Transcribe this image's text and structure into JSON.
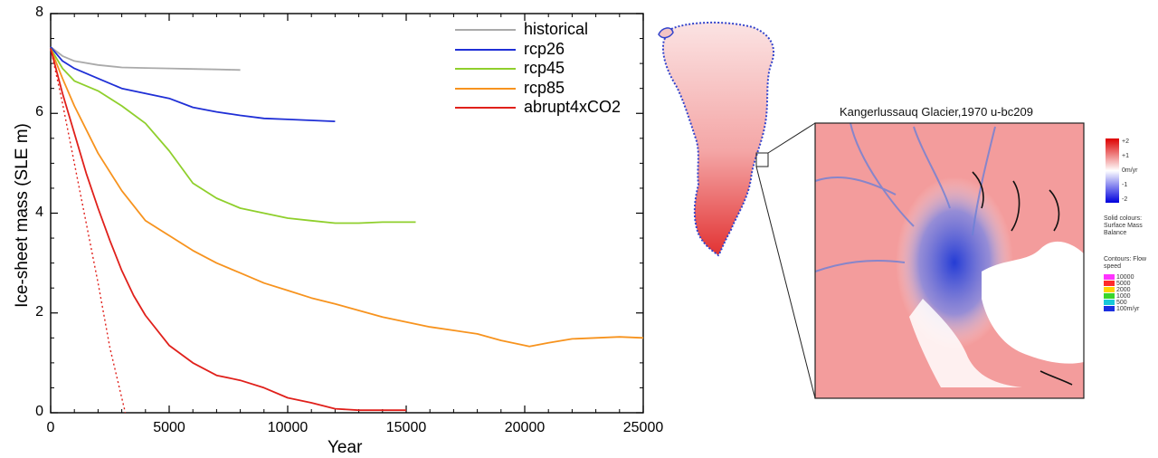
{
  "chart_data": {
    "type": "line",
    "xlabel": "Year",
    "ylabel": "Ice-sheet mass (SLE m)",
    "xlim": [
      0,
      25000
    ],
    "ylim": [
      0,
      8
    ],
    "xticks": [
      0,
      5000,
      10000,
      15000,
      20000,
      25000
    ],
    "yticks": [
      0,
      2,
      4,
      6,
      8
    ],
    "legend_position": "top-right",
    "series": [
      {
        "name": "historical",
        "color": "#aaaaaa",
        "x": [
          0,
          500,
          1000,
          2000,
          3000,
          4000,
          5000,
          6000,
          7000,
          8000
        ],
        "y": [
          7.33,
          7.15,
          7.05,
          6.97,
          6.92,
          6.91,
          6.9,
          6.89,
          6.88,
          6.87
        ]
      },
      {
        "name": "rcp26",
        "color": "#1f2fd6",
        "x": [
          0,
          500,
          1000,
          2000,
          3000,
          4000,
          5000,
          6000,
          7000,
          8000,
          9000,
          10000,
          11000,
          12000
        ],
        "y": [
          7.33,
          7.05,
          6.9,
          6.7,
          6.5,
          6.4,
          6.3,
          6.12,
          6.03,
          5.96,
          5.9,
          5.88,
          5.86,
          5.84
        ]
      },
      {
        "name": "rcp45",
        "color": "#8fcf2c",
        "x": [
          0,
          500,
          1000,
          2000,
          3000,
          4000,
          5000,
          6000,
          7000,
          8000,
          9000,
          10000,
          11000,
          12000,
          13000,
          14000,
          15400
        ],
        "y": [
          7.3,
          6.9,
          6.65,
          6.45,
          6.15,
          5.8,
          5.25,
          4.6,
          4.3,
          4.1,
          4.0,
          3.9,
          3.85,
          3.8,
          3.8,
          3.82,
          3.82
        ]
      },
      {
        "name": "rcp85",
        "color": "#f7931e",
        "x": [
          0,
          500,
          1000,
          2000,
          3000,
          4000,
          5000,
          6000,
          7000,
          8000,
          9000,
          10000,
          11000,
          12000,
          13000,
          14000,
          15000,
          16000,
          17000,
          18000,
          19000,
          20000,
          20200,
          21000,
          22000,
          23000,
          24000,
          25000
        ],
        "y": [
          7.3,
          6.7,
          6.15,
          5.2,
          4.45,
          3.85,
          3.55,
          3.25,
          3.0,
          2.8,
          2.6,
          2.45,
          2.3,
          2.18,
          2.05,
          1.92,
          1.82,
          1.72,
          1.65,
          1.58,
          1.45,
          1.35,
          1.33,
          1.4,
          1.48,
          1.5,
          1.52,
          1.5
        ]
      },
      {
        "name": "abrupt4xCO2",
        "color": "#e0201b",
        "x": [
          0,
          500,
          1000,
          1500,
          2000,
          2500,
          3000,
          3500,
          4000,
          5000,
          6000,
          7000,
          8000,
          9000,
          10000,
          11000,
          12000,
          13000,
          14000,
          15000
        ],
        "y": [
          7.3,
          6.4,
          5.6,
          4.8,
          4.1,
          3.45,
          2.85,
          2.35,
          1.95,
          1.35,
          1.0,
          0.75,
          0.65,
          0.5,
          0.3,
          0.2,
          0.08,
          0.05,
          0.05,
          0.05
        ]
      },
      {
        "name": "",
        "color": "#e0201b",
        "dashed": true,
        "legend": false,
        "x": [
          0,
          500,
          1000,
          1500,
          2000,
          2500,
          3150
        ],
        "y": [
          7.3,
          6.2,
          5.0,
          3.8,
          2.6,
          1.3,
          0.0
        ]
      }
    ]
  },
  "inset": {
    "title": "Kangerlussauq Glacier,1970 u-bc209",
    "colorbar_ticks": [
      "+2",
      "+1",
      "0m/yr",
      "-1",
      "-2"
    ],
    "solid_colours_label": [
      "Solid colours:",
      "Surface Mass",
      "Balance"
    ],
    "contours_label": [
      "Contours: Flow",
      "speed"
    ],
    "speed_legend": [
      {
        "label": "10000",
        "color": "#ff33ff"
      },
      {
        "label": "5000",
        "color": "#ff2a2a"
      },
      {
        "label": "2000",
        "color": "#ffd400"
      },
      {
        "label": "1000",
        "color": "#39d62c"
      },
      {
        "label": "500",
        "color": "#18c9d9"
      },
      {
        "label": "100m/yr",
        "color": "#1b2fe0"
      }
    ]
  }
}
